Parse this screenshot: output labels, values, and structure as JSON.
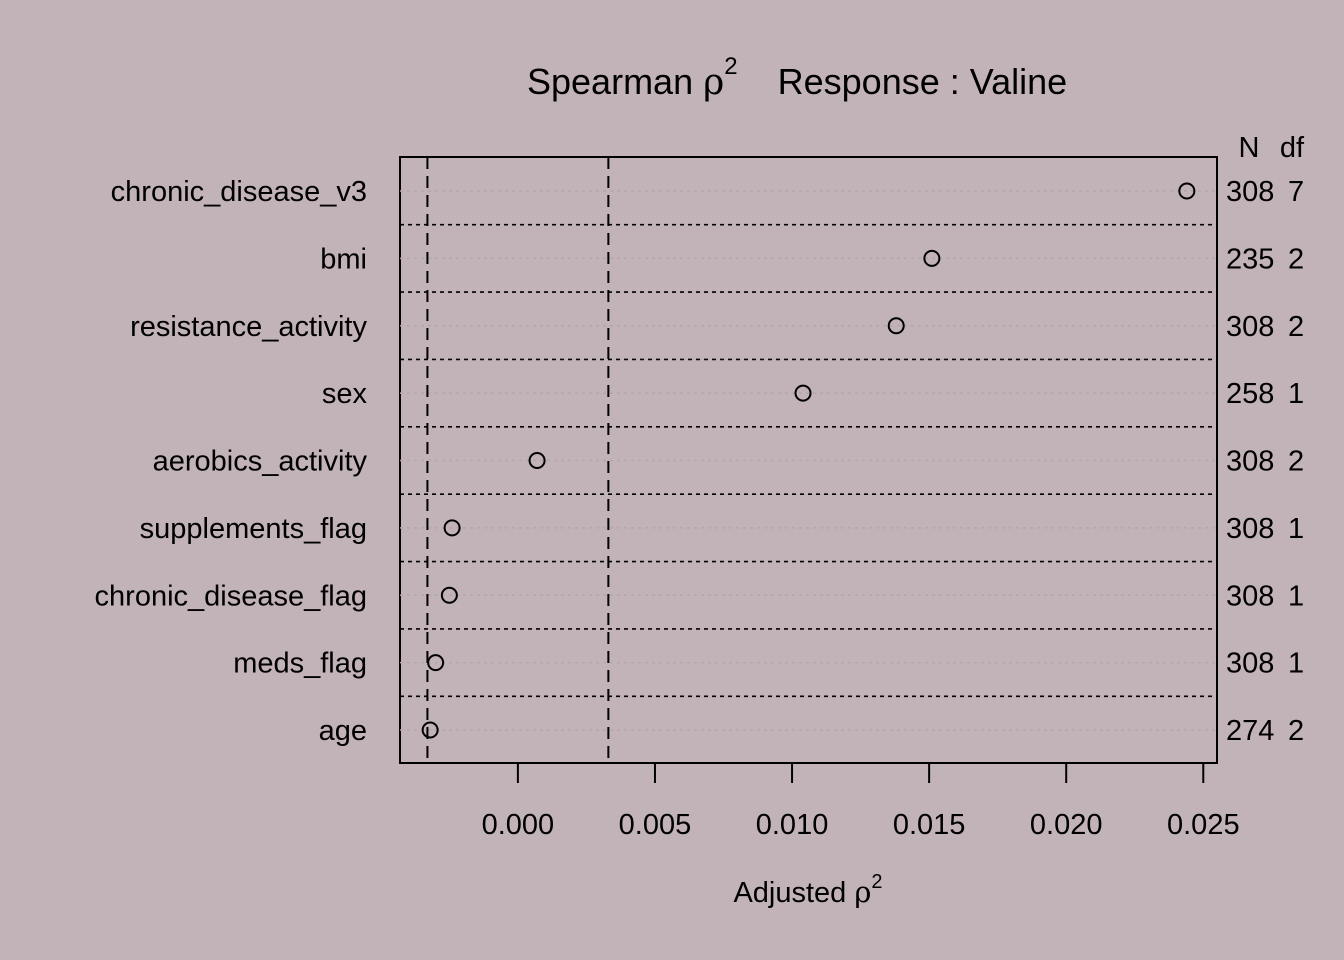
{
  "background_color": "#c2b3b8",
  "title": {
    "prefix": "Spearman ",
    "rho": "ρ",
    "sup": "2",
    "suffix": "Response : Valine"
  },
  "xlabel": {
    "prefix": "Adjusted ",
    "rho": "ρ",
    "sup": "2"
  },
  "right_header": {
    "n": "N",
    "df": "df"
  },
  "chart_data": {
    "type": "scatter",
    "chart_subtype": "dotchart",
    "xlim": [
      -0.0043,
      0.0255
    ],
    "xticks": [
      0.0,
      0.005,
      0.01,
      0.015,
      0.02,
      0.025
    ],
    "xtick_labels": [
      "0.000",
      "0.005",
      "0.010",
      "0.015",
      "0.020",
      "0.025"
    ],
    "reference_lines": [
      -0.0033,
      0.0033
    ],
    "rows": [
      {
        "label": "chronic_disease_v3",
        "value": 0.0244,
        "n": "308",
        "df": "7"
      },
      {
        "label": "bmi",
        "value": 0.0151,
        "n": "235",
        "df": "2"
      },
      {
        "label": "resistance_activity",
        "value": 0.0138,
        "n": "308",
        "df": "2"
      },
      {
        "label": "sex",
        "value": 0.0104,
        "n": "258",
        "df": "1"
      },
      {
        "label": "aerobics_activity",
        "value": 0.0007,
        "n": "308",
        "df": "2"
      },
      {
        "label": "supplements_flag",
        "value": -0.0024,
        "n": "308",
        "df": "1"
      },
      {
        "label": "chronic_disease_flag",
        "value": -0.0025,
        "n": "308",
        "df": "1"
      },
      {
        "label": "meds_flag",
        "value": -0.003,
        "n": "308",
        "df": "1"
      },
      {
        "label": "age",
        "value": -0.0032,
        "n": "274",
        "df": "2"
      }
    ]
  }
}
